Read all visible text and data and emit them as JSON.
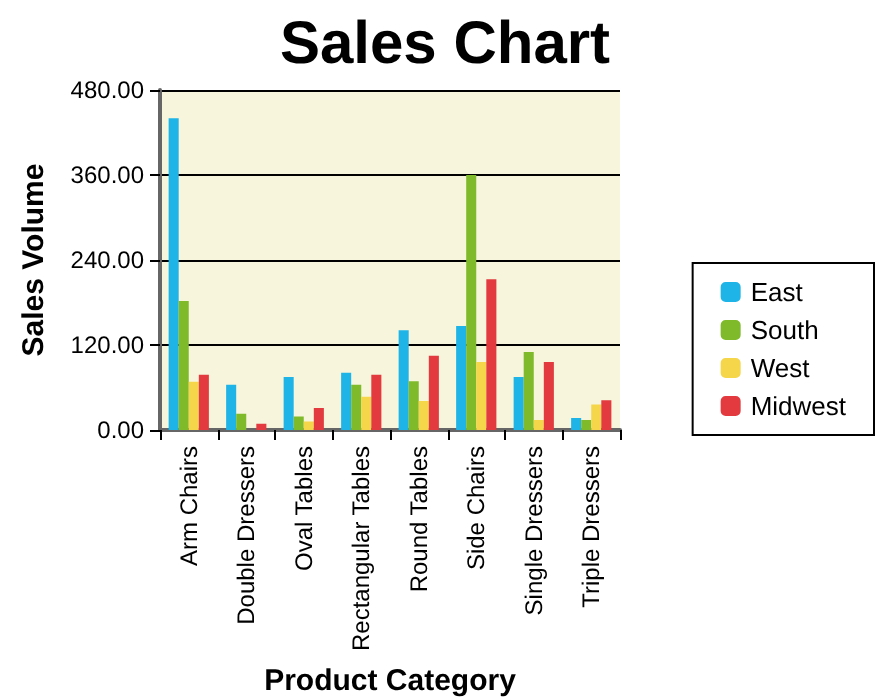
{
  "chart_data": {
    "type": "bar",
    "title": "Sales Chart",
    "xlabel": "Product Category",
    "ylabel": "Sales Volume",
    "categories": [
      "Arm Chairs",
      "Double Dressers",
      "Oval Tables",
      "Rectangular Tables",
      "Round Tables",
      "Side Chairs",
      "Single Dressers",
      "Triple Dressers"
    ],
    "series": [
      {
        "name": "East",
        "color": "#1fb4e8",
        "values": [
          440,
          64,
          75,
          81,
          141,
          147,
          75,
          17
        ]
      },
      {
        "name": "South",
        "color": "#7fba2a",
        "values": [
          182,
          23,
          19,
          64,
          69,
          360,
          110,
          14
        ]
      },
      {
        "name": "West",
        "color": "#f5d54a",
        "values": [
          68,
          0,
          12,
          47,
          41,
          96,
          14,
          36
        ]
      },
      {
        "name": "Midwest",
        "color": "#e23a3e",
        "values": [
          78,
          9,
          31,
          78,
          105,
          213,
          96,
          42
        ]
      }
    ],
    "ylim": [
      0,
      480
    ],
    "yticks": [
      {
        "value": 0,
        "label": "0.00"
      },
      {
        "value": 120,
        "label": "120.00"
      },
      {
        "value": 240,
        "label": "240.00"
      },
      {
        "value": 360,
        "label": "360.00"
      },
      {
        "value": 480,
        "label": "480.00"
      }
    ],
    "grid": "y",
    "legend": "right"
  }
}
